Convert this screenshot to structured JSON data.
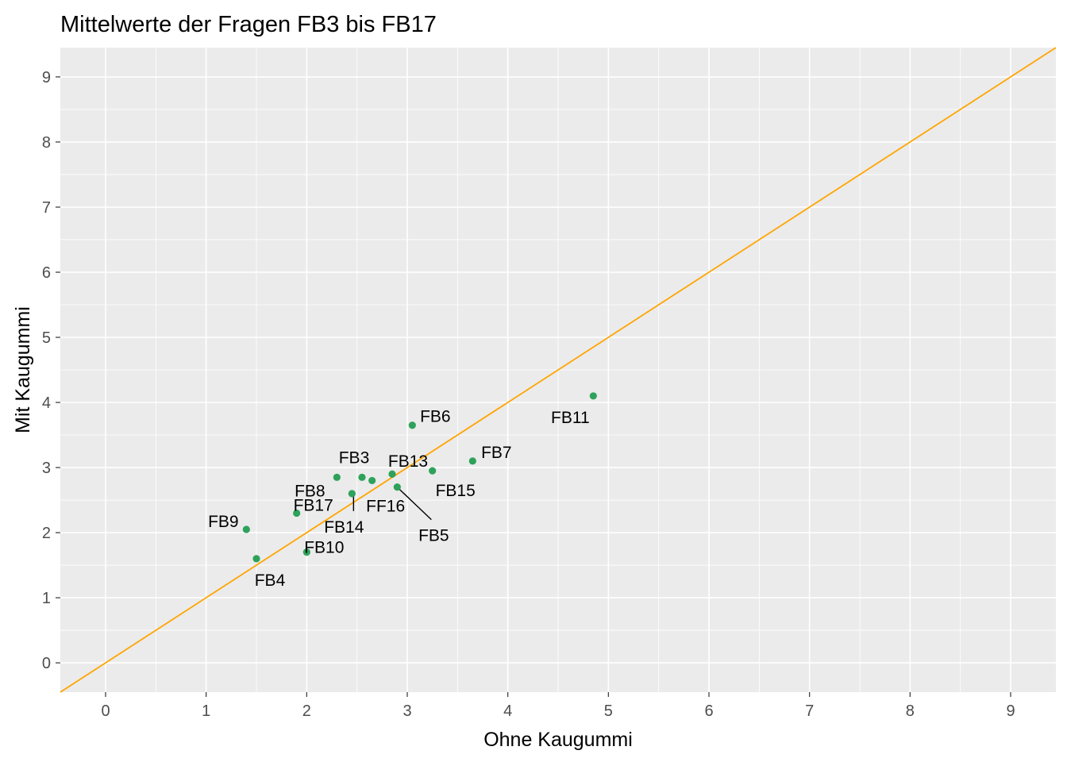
{
  "chart_data": {
    "type": "scatter",
    "title": "Mittelwerte der Fragen FB3 bis FB17",
    "xlabel": "Ohne Kaugummi",
    "ylabel": "Mit Kaugummi",
    "xlim": [
      -0.45,
      9.45
    ],
    "ylim": [
      -0.45,
      9.45
    ],
    "xticks": [
      "0",
      "1",
      "2",
      "3",
      "4",
      "5",
      "6",
      "7",
      "8",
      "9"
    ],
    "yticks": [
      "0",
      "1",
      "2",
      "3",
      "4",
      "5",
      "6",
      "7",
      "8",
      "9"
    ],
    "grid": true,
    "reference_line": {
      "slope": 1,
      "intercept": 0,
      "color": "#FFA500"
    },
    "point_color": "#2EA25A",
    "points": [
      {
        "label": "FB3",
        "x": 2.55,
        "y": 2.85
      },
      {
        "label": "FB4",
        "x": 1.5,
        "y": 1.6
      },
      {
        "label": "FB5",
        "x": 2.9,
        "y": 2.7
      },
      {
        "label": "FB6",
        "x": 3.05,
        "y": 3.65
      },
      {
        "label": "FB7",
        "x": 3.65,
        "y": 3.1
      },
      {
        "label": "FB8",
        "x": 2.3,
        "y": 2.85
      },
      {
        "label": "FB9",
        "x": 1.4,
        "y": 2.05
      },
      {
        "label": "FB10",
        "x": 2.0,
        "y": 1.7
      },
      {
        "label": "FB11",
        "x": 4.85,
        "y": 4.1
      },
      {
        "label": "FB13",
        "x": 2.85,
        "y": 2.9
      },
      {
        "label": "FB14",
        "x": 2.45,
        "y": 2.6
      },
      {
        "label": "FB15",
        "x": 3.25,
        "y": 2.95
      },
      {
        "label": "FF16",
        "x": 2.65,
        "y": 2.8
      },
      {
        "label": "FB17",
        "x": 1.9,
        "y": 2.3
      }
    ]
  }
}
